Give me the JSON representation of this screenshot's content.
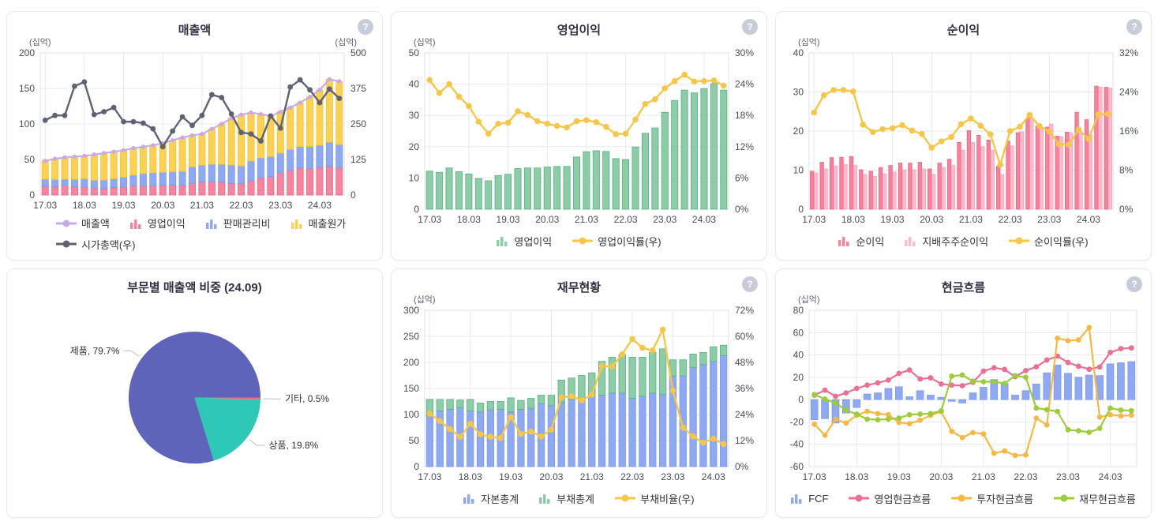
{
  "page": {
    "background": "#ffffff",
    "card_border": "#e7e9f0",
    "grid_color": "#e7e9f0",
    "axis_text_color": "#474c59",
    "help_icon_bg": "#c7ccd8"
  },
  "cards": [
    {
      "key": "revenue",
      "title": "매출액",
      "unit_left": "(십억)",
      "unit_right": "(십억)",
      "help_label": "?"
    },
    {
      "key": "operating-profit",
      "title": "영업이익",
      "unit_left": "(십억)",
      "help_label": "?"
    },
    {
      "key": "net-profit",
      "title": "순이익",
      "unit_left": "(십억)",
      "help_label": "?"
    },
    {
      "key": "revenue-mix",
      "title": "부문별 매출액 비중 (24.09)"
    },
    {
      "key": "financial-status",
      "title": "재무현황",
      "unit_left": "(십억)",
      "help_label": "?"
    },
    {
      "key": "cash-flow",
      "title": "현금흐름",
      "unit_left": "(십억)",
      "help_label": "?"
    }
  ],
  "chart_data": [
    {
      "type": "bar",
      "title": "매출액",
      "stacked": true,
      "x_tick_step": 4,
      "categories": [
        "17.03",
        "17.06",
        "17.09",
        "17.12",
        "18.03",
        "18.06",
        "18.09",
        "18.12",
        "19.03",
        "19.06",
        "19.09",
        "19.12",
        "20.03",
        "20.06",
        "20.09",
        "20.12",
        "21.03",
        "21.06",
        "21.09",
        "21.12",
        "22.03",
        "22.06",
        "22.09",
        "22.12",
        "23.03",
        "23.06",
        "23.09",
        "23.12",
        "24.03",
        "24.06",
        "24.09"
      ],
      "left_axis": {
        "min": 0,
        "max": 200,
        "ticks": [
          0,
          50,
          100,
          150,
          200
        ],
        "suffix": ""
      },
      "right_axis": {
        "min": 0,
        "max": 500,
        "ticks": [
          0,
          125,
          250,
          375,
          500
        ],
        "suffix": ""
      },
      "legend_order": [
        3,
        0,
        1,
        2,
        4
      ],
      "series": [
        {
          "name": "영업이익",
          "kind": "bar",
          "color": "#f5849e",
          "stroke": "#ef6585",
          "values": [
            12.2,
            11.8,
            13.2,
            12.0,
            11.3,
            9.8,
            9.1,
            10.8,
            11.2,
            13.0,
            13.2,
            13.2,
            13.5,
            13.7,
            13.7,
            16.7,
            18.4,
            18.7,
            18.5,
            16.2,
            15.9,
            19.9,
            24.3,
            26.0,
            31.0,
            34.8,
            38.1,
            37.2,
            38.6,
            40.2,
            38.1
          ]
        },
        {
          "name": "판매관리비",
          "kind": "bar",
          "color": "#8fa9f1",
          "stroke": "#7b97ee",
          "values": [
            10,
            10,
            9,
            10,
            11.5,
            11,
            12,
            12,
            14,
            15,
            17,
            18,
            18.5,
            19,
            19.5,
            23,
            23.5,
            24.5,
            24.5,
            26,
            25,
            28,
            28,
            28,
            28,
            29,
            30,
            31,
            31.5,
            34,
            33
          ]
        },
        {
          "name": "매출원가",
          "kind": "bar",
          "color": "#fbd155",
          "stroke": "#f5c338",
          "values": [
            25.8,
            29.2,
            30.8,
            32.0,
            32.2,
            36.2,
            37.9,
            38.2,
            37.8,
            38.0,
            37.8,
            38.8,
            41.0,
            44.3,
            47.8,
            44.3,
            44.1,
            49.8,
            57.0,
            65.8,
            72.1,
            68.1,
            61.7,
            57.0,
            58.0,
            59.2,
            61.9,
            69.8,
            77.9,
            88.8,
            88.9
          ]
        },
        {
          "name": "매출액",
          "kind": "line",
          "axis": "left",
          "color": "#c8a8e6",
          "width": 2,
          "dot": 2.7,
          "values": [
            48,
            51,
            53,
            54,
            55,
            57,
            59,
            61,
            63,
            66,
            68,
            70,
            73,
            77,
            81,
            84,
            86,
            93,
            100,
            108,
            113,
            116,
            114,
            111,
            117,
            123,
            130,
            138,
            148,
            163,
            160
          ]
        },
        {
          "name": "시가총액(우)",
          "kind": "line",
          "axis": "right",
          "color": "#5d6373",
          "width": 2.4,
          "dot": 3.4,
          "values": [
            263,
            280,
            280,
            383,
            398,
            283,
            293,
            308,
            258,
            258,
            253,
            233,
            170,
            225,
            275,
            245,
            280,
            353,
            343,
            285,
            220,
            215,
            190,
            278,
            235,
            380,
            405,
            370,
            325,
            373,
            340
          ]
        }
      ]
    },
    {
      "type": "bar",
      "title": "영업이익",
      "stacked": false,
      "x_tick_step": 4,
      "categories": [
        "17.03",
        "17.06",
        "17.09",
        "17.12",
        "18.03",
        "18.06",
        "18.09",
        "18.12",
        "19.03",
        "19.06",
        "19.09",
        "19.12",
        "20.03",
        "20.06",
        "20.09",
        "20.12",
        "21.03",
        "21.06",
        "21.09",
        "21.12",
        "22.03",
        "22.06",
        "22.09",
        "22.12",
        "23.03",
        "23.06",
        "23.09",
        "23.12",
        "24.03",
        "24.06",
        "24.09"
      ],
      "left_axis": {
        "min": 0,
        "max": 50,
        "ticks": [
          0,
          10,
          20,
          30,
          40,
          50
        ],
        "suffix": ""
      },
      "right_axis": {
        "min": 0,
        "max": 30,
        "ticks": [
          0,
          6,
          12,
          18,
          24,
          30
        ],
        "suffix": "%"
      },
      "legend_order": [
        0,
        1
      ],
      "series": [
        {
          "name": "영업이익",
          "kind": "bar",
          "color": "#8ecba7",
          "stroke": "#53b183",
          "values": [
            12.2,
            11.8,
            13.2,
            12.0,
            11.3,
            9.8,
            9.1,
            10.8,
            11.2,
            13.0,
            13.2,
            13.2,
            13.5,
            13.7,
            13.7,
            16.7,
            18.4,
            18.7,
            18.5,
            16.2,
            15.9,
            19.9,
            24.3,
            26.0,
            31.0,
            34.8,
            38.1,
            37.2,
            38.6,
            40.2,
            38.1
          ]
        },
        {
          "name": "영업이익률(우)",
          "kind": "line",
          "axis": "right",
          "color": "#f6c64a",
          "width": 2.4,
          "dot": 3.8,
          "values": [
            24.8,
            22.3,
            24.0,
            21.6,
            19.8,
            16.8,
            14.5,
            16.4,
            16.6,
            18.8,
            18.1,
            16.9,
            16.4,
            16.0,
            15.7,
            16.9,
            17.1,
            16.7,
            15.8,
            14.4,
            14.5,
            17.2,
            20.2,
            21.1,
            23.2,
            24.6,
            25.8,
            24.5,
            24.6,
            24.7,
            23.7
          ]
        }
      ]
    },
    {
      "type": "bar",
      "title": "순이익",
      "stacked": false,
      "x_tick_step": 4,
      "categories": [
        "17.03",
        "17.06",
        "17.09",
        "17.12",
        "18.03",
        "18.06",
        "18.09",
        "18.12",
        "19.03",
        "19.06",
        "19.09",
        "19.12",
        "20.03",
        "20.06",
        "20.09",
        "20.12",
        "21.03",
        "21.06",
        "21.09",
        "21.12",
        "22.03",
        "22.06",
        "22.09",
        "22.12",
        "23.03",
        "23.06",
        "23.09",
        "23.12",
        "24.03",
        "24.06",
        "24.09"
      ],
      "left_axis": {
        "min": 0,
        "max": 40,
        "ticks": [
          0,
          10,
          20,
          30,
          40
        ],
        "suffix": ""
      },
      "right_axis": {
        "min": 0,
        "max": 32,
        "ticks": [
          0,
          8,
          16,
          24,
          32
        ],
        "suffix": "%"
      },
      "legend_order": [
        0,
        1,
        2
      ],
      "series": [
        {
          "name": "순이익",
          "kind": "bar",
          "color": "#f4839b",
          "stroke": "#ef6183",
          "values": [
            9.7,
            12.0,
            13.2,
            13.3,
            13.5,
            10.1,
            9.7,
            10.7,
            11.2,
            11.8,
            11.8,
            12.0,
            10.3,
            11.8,
            12.8,
            17.1,
            20.1,
            18.9,
            17.7,
            11.0,
            17.4,
            19.6,
            23.3,
            21.3,
            21.0,
            18.7,
            19.7,
            24.8,
            22.9,
            31.5,
            31.2
          ]
        },
        {
          "name": "지배주주순이익",
          "kind": "bar",
          "color": "#f9bccd",
          "stroke": "#f5a3ba",
          "values": [
            9.3,
            10.3,
            11.1,
            11.4,
            11.2,
            8.9,
            8.4,
            9.1,
            9.5,
            10.1,
            10.1,
            10.3,
            8.9,
            10.7,
            11.2,
            15.1,
            17.1,
            16.0,
            15.1,
            8.9,
            16.2,
            19.8,
            23.4,
            21.0,
            21.8,
            18.6,
            19.6,
            19.4,
            19.0,
            31.3,
            31.0
          ]
        },
        {
          "name": "순이익률(우)",
          "kind": "line",
          "axis": "right",
          "color": "#f6c64a",
          "width": 2.4,
          "dot": 3.8,
          "values": [
            19.8,
            23.3,
            24.4,
            24.4,
            24.1,
            17.3,
            15.8,
            16.4,
            16.6,
            17.2,
            16.1,
            15.4,
            12.6,
            13.9,
            14.8,
            17.4,
            18.6,
            17.1,
            15.3,
            9.1,
            16.0,
            16.9,
            19.3,
            17.0,
            15.9,
            13.3,
            13.2,
            16.3,
            14.4,
            19.4,
            19.5
          ]
        }
      ]
    },
    {
      "type": "pie",
      "title": "부문별 매출액 비중 (24.09)",
      "period": "24.09",
      "start_angle_deg": 0,
      "clockwise": true,
      "slices": [
        {
          "label": "기타",
          "value": 0.5,
          "color": "#e9707c"
        },
        {
          "label": "상품",
          "value": 19.8,
          "color": "#2fc7b5"
        },
        {
          "label": "제품",
          "value": 79.7,
          "color": "#5d64ba"
        }
      ]
    },
    {
      "type": "bar",
      "title": "재무현황",
      "stacked": true,
      "x_tick_step": 4,
      "categories": [
        "17.03",
        "17.06",
        "17.09",
        "17.12",
        "18.03",
        "18.06",
        "18.09",
        "18.12",
        "19.03",
        "19.06",
        "19.09",
        "19.12",
        "20.03",
        "20.06",
        "20.09",
        "20.12",
        "21.03",
        "21.06",
        "21.09",
        "21.12",
        "22.03",
        "22.06",
        "22.09",
        "22.12",
        "23.03",
        "23.06",
        "23.09",
        "23.12",
        "24.03",
        "24.06"
      ],
      "left_axis": {
        "min": 0,
        "max": 300,
        "ticks": [
          0,
          50,
          100,
          150,
          200,
          250,
          300
        ],
        "suffix": ""
      },
      "right_axis": {
        "min": 0,
        "max": 72,
        "ticks": [
          0,
          12,
          24,
          36,
          48,
          60,
          72
        ],
        "suffix": "%"
      },
      "legend_order": [
        0,
        1,
        2
      ],
      "series": [
        {
          "name": "자본총계",
          "kind": "bar",
          "color": "#8fa9f1",
          "stroke": "#7b97ee",
          "values": [
            98,
            107,
            110,
            113,
            107,
            105,
            109,
            110,
            105,
            110,
            112,
            121,
            117,
            124,
            129,
            126,
            135,
            137,
            141,
            141,
            131,
            135,
            141,
            138,
            174,
            174,
            190,
            196,
            202,
            213
          ]
        },
        {
          "name": "부채총계",
          "kind": "bar",
          "color": "#8ecba7",
          "stroke": "#53b183",
          "values": [
            31,
            22,
            19,
            15,
            22,
            17,
            16,
            15,
            27,
            17,
            19,
            16,
            20,
            42,
            41,
            49,
            45,
            65,
            69,
            74,
            79,
            75,
            78,
            88,
            31,
            31,
            26,
            23,
            28,
            20
          ]
        },
        {
          "name": "부채비율(우)",
          "kind": "line",
          "axis": "right",
          "color": "#f6c64a",
          "width": 2.4,
          "dot": 3.8,
          "values": [
            24.4,
            21.0,
            17.3,
            13.7,
            19.7,
            14.9,
            13.7,
            13.2,
            22.8,
            15.1,
            16.1,
            13.9,
            17.0,
            31.9,
            32.4,
            30.5,
            33.1,
            46.3,
            46.1,
            51.8,
            58.8,
            54.7,
            53.5,
            63.1,
            35.0,
            18.0,
            13.9,
            11.0,
            12.9,
            10.4
          ]
        }
      ]
    },
    {
      "type": "bar",
      "title": "현금흐름",
      "stacked": false,
      "x_tick_step": 4,
      "categories": [
        "17.03",
        "17.06",
        "17.09",
        "17.12",
        "18.03",
        "18.06",
        "18.09",
        "18.12",
        "19.03",
        "19.06",
        "19.09",
        "19.12",
        "20.03",
        "20.06",
        "20.09",
        "20.12",
        "21.03",
        "21.06",
        "21.09",
        "21.12",
        "22.03",
        "22.06",
        "22.09",
        "22.12",
        "23.03",
        "23.06",
        "23.09",
        "23.12",
        "24.03",
        "24.06",
        "24.09"
      ],
      "left_axis": {
        "min": -60,
        "max": 80,
        "ticks": [
          -60,
          -40,
          -20,
          0,
          20,
          40,
          60,
          80
        ],
        "suffix": ""
      },
      "right_axis": null,
      "legend_order": [
        0,
        1,
        2,
        3
      ],
      "series": [
        {
          "name": "FCF",
          "kind": "bar",
          "color": "#8fa9f1",
          "stroke": "#7b97ee",
          "values": [
            -18,
            -17,
            -21,
            -12,
            -7,
            5,
            6,
            10,
            11.5,
            2.5,
            8,
            4,
            2,
            -1.5,
            -3,
            6,
            11,
            18,
            14.5,
            4,
            8,
            14,
            24,
            31,
            23.5,
            20,
            22,
            21.5,
            32,
            33,
            34
          ]
        },
        {
          "name": "영업현금흐름",
          "kind": "line",
          "axis": "left",
          "color": "#ec6f93",
          "width": 2.2,
          "dot": 3.4,
          "values": [
            4,
            8.5,
            3,
            6,
            10,
            13,
            15,
            17.5,
            23.5,
            26.5,
            18.5,
            19.5,
            14,
            13,
            12.5,
            15.5,
            25.5,
            28.5,
            27,
            20.5,
            26,
            29.4,
            35.5,
            38.9,
            33.3,
            29.9,
            27.2,
            29.2,
            42.2,
            45.6,
            46.3
          ]
        },
        {
          "name": "투자현금흐름",
          "kind": "line",
          "axis": "left",
          "color": "#f6b844",
          "width": 2.2,
          "dot": 3.4,
          "values": [
            -22,
            -32,
            -17.5,
            -21,
            -14,
            -10.5,
            -12.5,
            -13.5,
            -20.5,
            -21.5,
            -18.5,
            -14,
            -10.7,
            -28.4,
            -34,
            -29.5,
            -30.7,
            -48,
            -46,
            -50,
            -49.5,
            -16.6,
            -22.7,
            55,
            52.8,
            53.5,
            64.5,
            -15.7,
            -13.5,
            -14.6,
            -13.9
          ]
        },
        {
          "name": "재무현금흐름",
          "kind": "line",
          "axis": "left",
          "color": "#9ccb3b",
          "width": 2.2,
          "dot": 3.4,
          "values": [
            4.5,
            0.5,
            -3,
            -9.5,
            -13,
            -17.5,
            -18,
            -17.5,
            -16.5,
            -13.5,
            -13,
            -12.5,
            -10,
            21,
            22,
            16.5,
            16,
            16,
            14.5,
            21.5,
            20,
            -7.6,
            -9,
            -10.6,
            -27,
            -27.9,
            -29.2,
            -25.8,
            -7.6,
            -9.4,
            -9.9
          ]
        }
      ]
    }
  ]
}
